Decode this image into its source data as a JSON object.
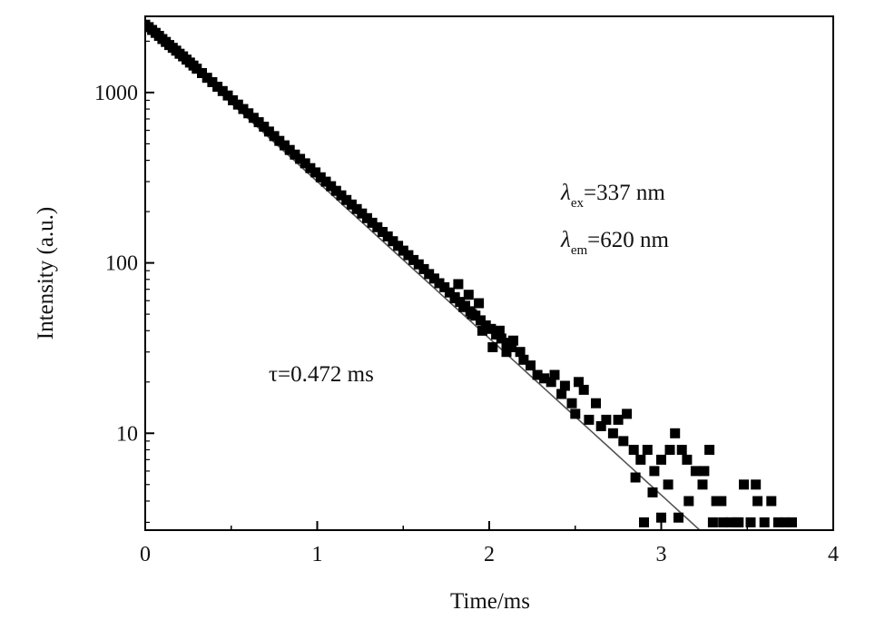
{
  "chart_data": {
    "type": "scatter",
    "title": "",
    "xlabel": "Time/ms",
    "ylabel": "Intensity (a.u.)",
    "xlim": [
      0,
      4
    ],
    "ylim": [
      2.7,
      2800
    ],
    "yscale": "log",
    "grid": false,
    "legend": "none",
    "x_ticks": [
      0,
      1,
      2,
      3,
      4
    ],
    "x_tick_labels": [
      "0",
      "1",
      "2",
      "3",
      "4"
    ],
    "y_ticks": [
      10,
      100,
      1000
    ],
    "y_tick_labels": [
      "10",
      "100",
      "1000"
    ],
    "series": [
      {
        "type": "scatter",
        "marker": "square",
        "color": "#000000",
        "points": [
          [
            0.0,
            2500
          ],
          [
            0.02,
            2420
          ],
          [
            0.04,
            2330
          ],
          [
            0.06,
            2240
          ],
          [
            0.08,
            2150
          ],
          [
            0.1,
            2060
          ],
          [
            0.12,
            1980
          ],
          [
            0.14,
            1900
          ],
          [
            0.16,
            1830
          ],
          [
            0.18,
            1760
          ],
          [
            0.2,
            1690
          ],
          [
            0.22,
            1630
          ],
          [
            0.24,
            1560
          ],
          [
            0.26,
            1500
          ],
          [
            0.28,
            1440
          ],
          [
            0.3,
            1380
          ],
          [
            0.33,
            1300
          ],
          [
            0.36,
            1220
          ],
          [
            0.39,
            1150
          ],
          [
            0.42,
            1080
          ],
          [
            0.45,
            1020
          ],
          [
            0.48,
            960
          ],
          [
            0.51,
            900
          ],
          [
            0.54,
            850
          ],
          [
            0.57,
            800
          ],
          [
            0.6,
            755
          ],
          [
            0.63,
            710
          ],
          [
            0.66,
            670
          ],
          [
            0.69,
            630
          ],
          [
            0.72,
            590
          ],
          [
            0.75,
            555
          ],
          [
            0.78,
            520
          ],
          [
            0.81,
            490
          ],
          [
            0.84,
            460
          ],
          [
            0.87,
            432
          ],
          [
            0.9,
            408
          ],
          [
            0.93,
            384
          ],
          [
            0.96,
            360
          ],
          [
            0.99,
            340
          ],
          [
            1.02,
            318
          ],
          [
            1.05,
            300
          ],
          [
            1.08,
            282
          ],
          [
            1.11,
            265
          ],
          [
            1.14,
            249
          ],
          [
            1.17,
            234
          ],
          [
            1.2,
            220
          ],
          [
            1.23,
            207
          ],
          [
            1.26,
            195
          ],
          [
            1.29,
            183
          ],
          [
            1.32,
            172
          ],
          [
            1.35,
            162
          ],
          [
            1.38,
            152
          ],
          [
            1.41,
            143
          ],
          [
            1.44,
            134
          ],
          [
            1.47,
            126
          ],
          [
            1.5,
            118
          ],
          [
            1.53,
            111
          ],
          [
            1.56,
            104
          ],
          [
            1.59,
            98
          ],
          [
            1.62,
            92
          ],
          [
            1.65,
            86
          ],
          [
            1.68,
            81
          ],
          [
            1.71,
            76
          ],
          [
            1.74,
            72
          ],
          [
            1.77,
            67
          ],
          [
            1.8,
            63
          ],
          [
            1.83,
            59
          ],
          [
            1.86,
            56
          ],
          [
            1.89,
            52
          ],
          [
            1.92,
            49
          ],
          [
            1.95,
            46
          ],
          [
            1.98,
            43
          ],
          [
            2.01,
            41
          ],
          [
            2.04,
            38
          ],
          [
            2.07,
            36
          ],
          [
            2.1,
            34
          ],
          [
            2.13,
            32
          ],
          [
            1.8,
            62
          ],
          [
            1.82,
            75
          ],
          [
            1.85,
            55
          ],
          [
            1.88,
            65
          ],
          [
            1.9,
            50
          ],
          [
            1.94,
            58
          ],
          [
            1.96,
            40
          ],
          [
            2.02,
            32
          ],
          [
            2.06,
            40
          ],
          [
            2.1,
            30
          ],
          [
            2.14,
            35
          ],
          [
            2.18,
            30
          ],
          [
            2.2,
            27
          ],
          [
            2.24,
            25
          ],
          [
            2.28,
            22
          ],
          [
            2.32,
            21
          ],
          [
            2.36,
            20
          ],
          [
            2.38,
            22
          ],
          [
            2.42,
            17
          ],
          [
            2.44,
            19
          ],
          [
            2.48,
            15
          ],
          [
            2.5,
            13
          ],
          [
            2.52,
            20
          ],
          [
            2.55,
            18
          ],
          [
            2.58,
            12
          ],
          [
            2.62,
            15
          ],
          [
            2.65,
            11
          ],
          [
            2.68,
            12
          ],
          [
            2.72,
            10
          ],
          [
            2.75,
            12
          ],
          [
            2.78,
            9
          ],
          [
            2.8,
            13
          ],
          [
            2.84,
            8
          ],
          [
            2.88,
            7
          ],
          [
            2.92,
            8
          ],
          [
            2.96,
            6
          ],
          [
            3.0,
            7
          ],
          [
            3.04,
            5
          ],
          [
            3.08,
            10
          ],
          [
            3.12,
            8
          ],
          [
            3.16,
            4
          ],
          [
            3.2,
            6
          ],
          [
            3.24,
            5
          ],
          [
            3.28,
            8
          ],
          [
            3.32,
            4
          ],
          [
            3.36,
            3
          ],
          [
            3.4,
            3
          ],
          [
            3.44,
            3
          ],
          [
            3.48,
            5
          ],
          [
            3.52,
            3
          ],
          [
            3.56,
            4
          ],
          [
            3.6,
            3
          ],
          [
            3.64,
            4
          ],
          [
            3.68,
            3
          ],
          [
            3.72,
            3
          ],
          [
            3.76,
            3
          ],
          [
            2.95,
            4.5
          ],
          [
            3.0,
            3.2
          ],
          [
            3.1,
            3.2
          ],
          [
            3.3,
            3.0
          ],
          [
            2.9,
            3.0
          ],
          [
            2.85,
            5.5
          ],
          [
            3.05,
            8
          ],
          [
            3.15,
            7
          ],
          [
            3.25,
            6
          ],
          [
            3.35,
            4
          ],
          [
            3.55,
            5
          ],
          [
            3.45,
            3
          ]
        ]
      },
      {
        "type": "line",
        "color": "#555555",
        "x": [
          0.0,
          3.5
        ],
        "fit": {
          "A": 2500,
          "tau_ms": 0.472
        }
      }
    ],
    "annotations": [
      {
        "text": "τ=0.472 ms"
      },
      {
        "symbol": "λ",
        "sub": "ex",
        "text": "=337 nm"
      },
      {
        "symbol": "λ",
        "sub": "em",
        "text": "=620 nm"
      }
    ]
  }
}
